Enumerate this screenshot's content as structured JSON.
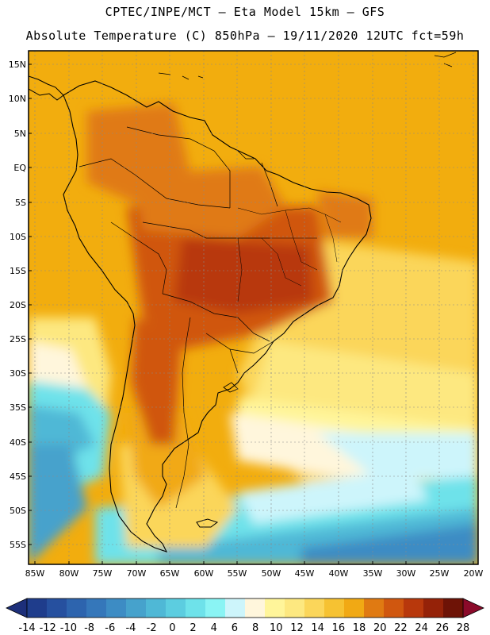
{
  "header": {
    "line1": "CPTEC/INPE/MCT –  Eta Model 15km – GFS",
    "line2": "Absolute Temperature (C) 850hPa – 19/11/2020 12UTC fct=59h"
  },
  "axes": {
    "lat_labels": [
      "15N",
      "10N",
      "5N",
      "EQ",
      "5S",
      "10S",
      "15S",
      "20S",
      "25S",
      "30S",
      "35S",
      "40S",
      "45S",
      "50S",
      "55S"
    ],
    "lon_labels": [
      "85W",
      "80W",
      "75W",
      "70W",
      "65W",
      "60W",
      "55W",
      "50W",
      "45W",
      "40W",
      "35W",
      "30W",
      "25W",
      "20W"
    ]
  },
  "colorbar": {
    "ticks": [
      "-14",
      "-12",
      "-10",
      "-8",
      "-6",
      "-4",
      "-2",
      "0",
      "2",
      "4",
      "6",
      "8",
      "10",
      "12",
      "14",
      "16",
      "18",
      "20",
      "22",
      "24",
      "26",
      "28"
    ],
    "colors": [
      "#1f3d8c",
      "#26509f",
      "#2d64ae",
      "#3577ba",
      "#3d8cc4",
      "#46a2cc",
      "#4fb8d6",
      "#5ccde0",
      "#6ee2ea",
      "#8af4f4",
      "#cdf5fb",
      "#fff6dc",
      "#fff59a",
      "#fde880",
      "#fbd65a",
      "#f6c232",
      "#f1a914",
      "#e07a12",
      "#d0570f",
      "#b8380c",
      "#952208",
      "#6e1306"
    ],
    "under_color": "#1d2f7a",
    "over_color": "#8b0a2a"
  },
  "map": {
    "ocean_color": "#f2ad0e",
    "land_color": "#e4901a"
  }
}
